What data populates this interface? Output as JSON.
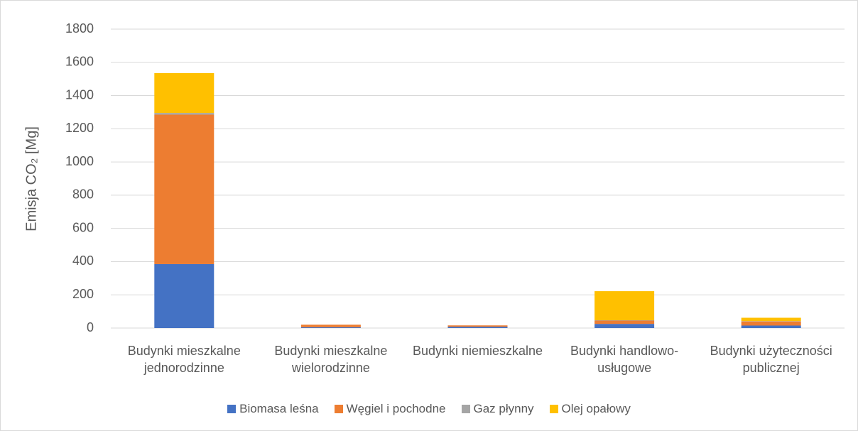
{
  "chart_data": {
    "type": "stacked_bar",
    "y_label": "Emisja CO₂ [Mg]",
    "categories": [
      "Budynki mieszkalne jednorodzinne",
      "Budynki mieszkalne wielorodzinne",
      "Budynki niemieszkalne",
      "Budynki handlowo-usługowe",
      "Budynki użyteczności publicznej"
    ],
    "series": [
      {
        "name": "Biomasa leśna",
        "color": "#4472c4",
        "values": [
          385,
          5,
          8,
          25,
          15
        ]
      },
      {
        "name": "Węgiel i pochodne",
        "color": "#ed7d31",
        "values": [
          900,
          15,
          8,
          20,
          25
        ]
      },
      {
        "name": "Gaz płynny",
        "color": "#a5a5a5",
        "values": [
          10,
          0,
          0,
          2,
          2
        ]
      },
      {
        "name": "Olej opałowy",
        "color": "#ffc000",
        "values": [
          240,
          0,
          0,
          175,
          20
        ]
      }
    ],
    "ylim": [
      0,
      1800
    ],
    "yticks": [
      0,
      200,
      400,
      600,
      800,
      1000,
      1200,
      1400,
      1600,
      1800
    ],
    "grid": true,
    "legend": "bottom"
  }
}
